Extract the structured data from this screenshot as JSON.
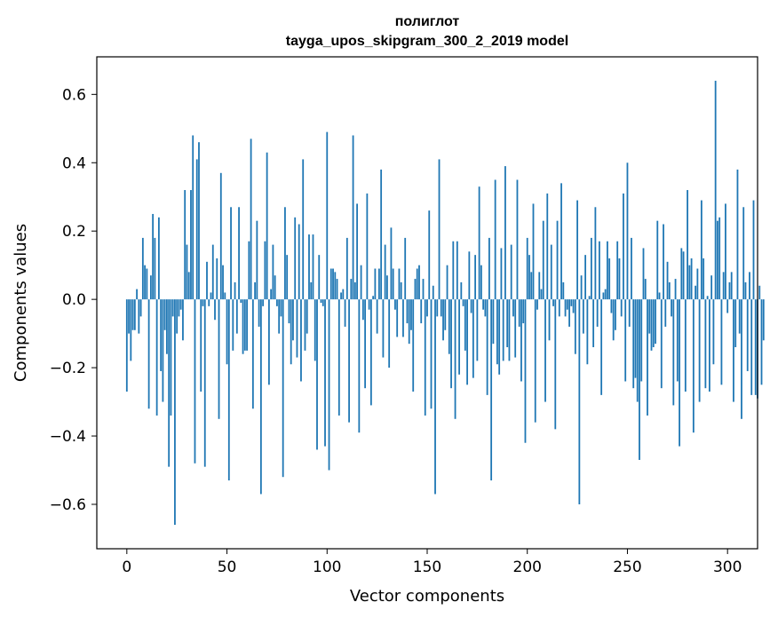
{
  "chart_data": {
    "type": "bar",
    "title": "полиглот",
    "subtitle": "tayga_upos_skipgram_300_2_2019 model",
    "xlabel": "Vector components",
    "ylabel": "Components values",
    "xlim": [
      -15,
      315
    ],
    "ylim": [
      -0.73,
      0.71
    ],
    "xticks": [
      0,
      50,
      100,
      150,
      200,
      250,
      300
    ],
    "xtick_labels": [
      "0",
      "50",
      "100",
      "150",
      "200",
      "250",
      "300"
    ],
    "yticks": [
      -0.6,
      -0.4,
      -0.2,
      0.0,
      0.2,
      0.4,
      0.6
    ],
    "ytick_labels": [
      "−0.6",
      "−0.4",
      "−0.2",
      "0.0",
      "0.2",
      "0.4",
      "0.6"
    ],
    "series_color": "#1f77b4",
    "values": [
      -0.27,
      -0.1,
      -0.18,
      -0.09,
      -0.09,
      0.03,
      -0.1,
      -0.05,
      0.18,
      0.1,
      0.09,
      -0.32,
      0.07,
      0.25,
      0.18,
      -0.34,
      0.24,
      -0.21,
      -0.3,
      -0.09,
      -0.16,
      -0.49,
      -0.34,
      -0.05,
      -0.66,
      -0.1,
      -0.05,
      -0.03,
      -0.12,
      0.32,
      0.16,
      0.08,
      0.32,
      0.48,
      -0.48,
      0.41,
      0.46,
      -0.27,
      -0.02,
      -0.49,
      0.11,
      -0.02,
      0.02,
      0.16,
      -0.06,
      0.12,
      -0.35,
      0.37,
      0.1,
      0.02,
      -0.19,
      -0.53,
      0.27,
      -0.15,
      0.05,
      -0.1,
      0.27,
      -0.01,
      -0.16,
      -0.15,
      -0.15,
      0.17,
      0.47,
      -0.32,
      0.05,
      0.23,
      -0.08,
      -0.57,
      -0.02,
      0.17,
      0.43,
      -0.25,
      0.03,
      0.16,
      0.07,
      -0.02,
      -0.1,
      -0.05,
      -0.52,
      0.27,
      0.13,
      -0.07,
      -0.19,
      -0.12,
      0.24,
      -0.17,
      0.22,
      -0.24,
      0.41,
      -0.15,
      -0.1,
      0.19,
      0.05,
      0.19,
      -0.18,
      -0.44,
      0.13,
      -0.01,
      -0.02,
      -0.43,
      0.49,
      -0.5,
      0.09,
      0.09,
      0.08,
      0.06,
      -0.34,
      0.02,
      0.03,
      -0.08,
      0.18,
      -0.36,
      0.06,
      0.48,
      0.05,
      0.28,
      -0.39,
      0.1,
      -0.06,
      -0.26,
      0.31,
      -0.03,
      -0.31,
      0.01,
      0.09,
      -0.1,
      0.09,
      0.38,
      -0.17,
      0.16,
      0.07,
      -0.2,
      0.21,
      0.09,
      -0.03,
      -0.11,
      0.09,
      0.05,
      -0.11,
      0.18,
      -0.07,
      -0.13,
      -0.09,
      -0.27,
      0.06,
      0.09,
      0.1,
      -0.07,
      0.06,
      -0.34,
      -0.05,
      0.26,
      -0.32,
      0.04,
      -0.57,
      -0.05,
      0.41,
      -0.05,
      -0.12,
      -0.09,
      0.1,
      -0.16,
      -0.26,
      0.17,
      -0.35,
      0.17,
      -0.22,
      0.05,
      -0.02,
      -0.15,
      -0.25,
      0.14,
      -0.04,
      -0.23,
      0.13,
      -0.18,
      0.33,
      0.1,
      -0.03,
      -0.05,
      -0.28,
      0.18,
      -0.53,
      -0.13,
      0.35,
      -0.19,
      -0.22,
      0.15,
      -0.18,
      0.39,
      -0.14,
      -0.18,
      0.16,
      -0.05,
      -0.17,
      0.35,
      -0.08,
      -0.24,
      -0.07,
      -0.42,
      0.18,
      0.13,
      0.08,
      0.28,
      -0.36,
      -0.03,
      0.08,
      0.03,
      0.23,
      -0.3,
      0.31,
      -0.12,
      0.16,
      -0.02,
      -0.38,
      0.23,
      -0.05,
      0.34,
      0.05,
      -0.05,
      -0.03,
      -0.08,
      -0.02,
      -0.04,
      -0.16,
      0.29,
      -0.6,
      0.07,
      -0.1,
      0.13,
      -0.19,
      0.01,
      0.18,
      -0.14,
      0.27,
      -0.08,
      0.17,
      -0.28,
      0.02,
      0.03,
      0.17,
      0.12,
      -0.04,
      -0.12,
      -0.09,
      0.17,
      0.12,
      -0.05,
      0.31,
      -0.24,
      0.4,
      -0.08,
      0.18,
      -0.26,
      -0.23,
      -0.3,
      -0.47,
      -0.24,
      0.15,
      0.06,
      -0.34,
      -0.1,
      -0.15,
      -0.14,
      -0.13,
      0.23,
      0.02,
      -0.26,
      0.22,
      -0.08,
      0.11,
      0.05,
      -0.05,
      -0.31,
      0.06,
      -0.24,
      -0.43,
      0.15,
      0.14,
      -0.27,
      0.32,
      0.1,
      0.12,
      -0.39,
      0.04,
      0.09,
      -0.3,
      0.29,
      0.12,
      -0.26,
      0.01,
      -0.27,
      0.07,
      -0.19,
      0.64,
      0.23,
      0.24,
      -0.25,
      0.08,
      0.28,
      -0.04,
      0.05,
      0.08,
      -0.3,
      -0.14,
      0.38,
      -0.1,
      -0.35,
      0.27,
      0.05,
      -0.21,
      0.08,
      -0.28,
      0.29,
      -0.28,
      -0.29,
      0.04,
      -0.25,
      -0.12
    ]
  }
}
